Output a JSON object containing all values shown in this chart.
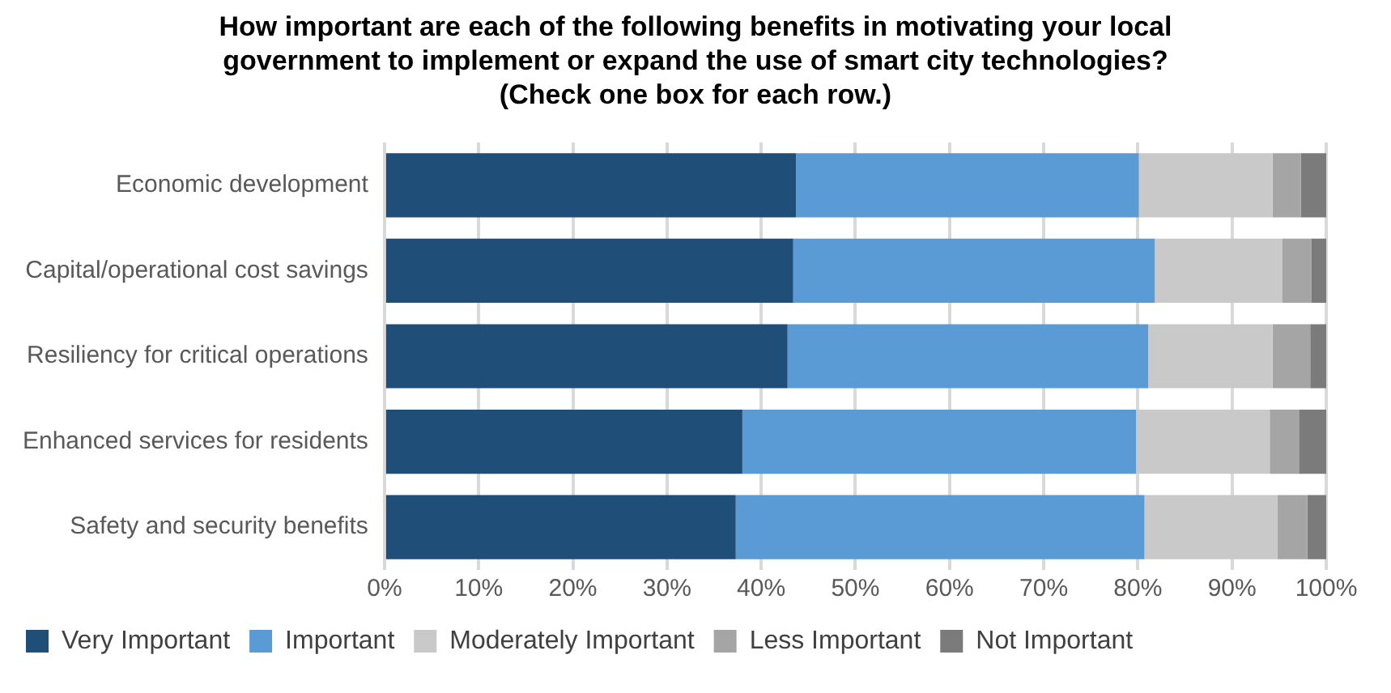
{
  "chart_data": {
    "type": "bar",
    "orientation": "horizontal",
    "stacked": true,
    "title": "How important are each of the following benefits in motivating your local government to implement or expand the use of smart city technologies?",
    "subtitle": "(Check one box for each row.)",
    "categories": [
      "Economic development",
      "Capital/operational cost savings",
      "Resiliency for critical operations",
      "Enhanced services for residents",
      "Safety and security benefits"
    ],
    "series": [
      {
        "name": "Very Important",
        "color": "#1f4e79",
        "values": [
          43.7,
          43.4,
          42.8,
          38.0,
          37.3
        ]
      },
      {
        "name": "Important",
        "color": "#5b9bd5",
        "values": [
          36.4,
          38.4,
          38.3,
          41.8,
          43.4
        ]
      },
      {
        "name": "Moderately Important",
        "color": "#c9c9c9",
        "values": [
          14.2,
          13.5,
          13.2,
          14.2,
          14.1
        ]
      },
      {
        "name": "Less Important",
        "color": "#a5a5a5",
        "values": [
          3.0,
          3.1,
          4.0,
          3.1,
          3.2
        ]
      },
      {
        "name": "Not Important",
        "color": "#7b7b7b",
        "values": [
          2.7,
          1.6,
          1.7,
          2.9,
          2.0
        ]
      }
    ],
    "xlim": [
      0,
      100
    ],
    "xticks": [
      {
        "value": 0,
        "label": "0%"
      },
      {
        "value": 10,
        "label": "10%"
      },
      {
        "value": 20,
        "label": "20%"
      },
      {
        "value": 30,
        "label": "30%"
      },
      {
        "value": 40,
        "label": "40%"
      },
      {
        "value": 50,
        "label": "50%"
      },
      {
        "value": 60,
        "label": "60%"
      },
      {
        "value": 70,
        "label": "70%"
      },
      {
        "value": 80,
        "label": "80%"
      },
      {
        "value": 90,
        "label": "90%"
      },
      {
        "value": 100,
        "label": "100%"
      }
    ],
    "grid": "x",
    "legend": "bottom"
  }
}
